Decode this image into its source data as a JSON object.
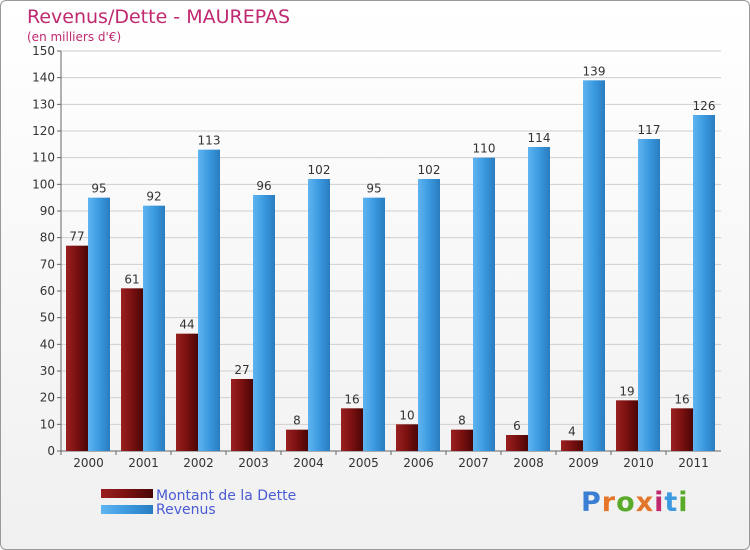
{
  "title": "Revenus/Dette - MAUREPAS",
  "subtitle": "(en milliers d'€)",
  "logo_text": "Proxiti",
  "colors": {
    "title": "#c0286f",
    "debt": "#7a1010",
    "revenue": "#3b9ae0",
    "legend_text": "#4a5bd4"
  },
  "chart_data": {
    "type": "bar",
    "categories": [
      "2000",
      "2001",
      "2002",
      "2003",
      "2004",
      "2005",
      "2006",
      "2007",
      "2008",
      "2009",
      "2010",
      "2011"
    ],
    "series": [
      {
        "name": "Montant de la Dette",
        "values": [
          77,
          61,
          44,
          27,
          8,
          16,
          10,
          8,
          6,
          4,
          19,
          16
        ]
      },
      {
        "name": "Revenus",
        "values": [
          95,
          92,
          113,
          96,
          102,
          95,
          102,
          110,
          114,
          139,
          117,
          126
        ]
      }
    ],
    "ylim": [
      0,
      150
    ],
    "yticks": [
      0,
      10,
      20,
      30,
      40,
      50,
      60,
      70,
      80,
      90,
      100,
      110,
      120,
      130,
      140,
      150
    ],
    "grid": true,
    "legend": "bottom-left"
  }
}
